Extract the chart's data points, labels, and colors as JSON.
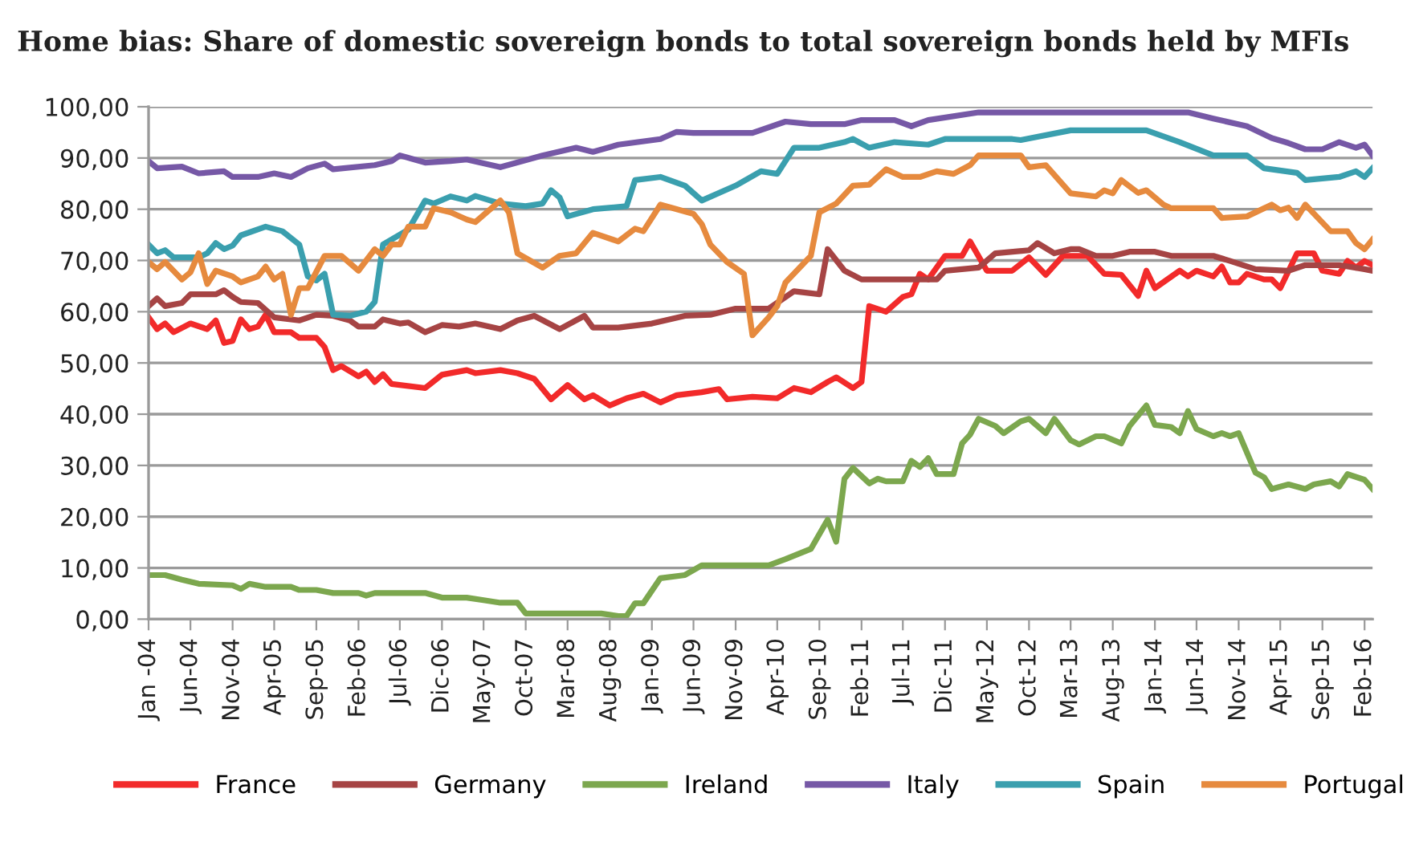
{
  "chart_data": {
    "type": "line",
    "title": "Home bias: Share of domestic sovereign bonds to total sovereign bonds held by MFIs",
    "xlim": [
      "2004-01",
      "2016-03"
    ],
    "xticks": [
      {
        "value": "2004-01",
        "label": "Jan -04"
      },
      {
        "value": "2004-06",
        "label": "Jun-04"
      },
      {
        "value": "2004-11",
        "label": "Nov-04"
      },
      {
        "value": "2005-04",
        "label": "Apr-05"
      },
      {
        "value": "2005-09",
        "label": "Sep-05"
      },
      {
        "value": "2006-02",
        "label": "Feb-06"
      },
      {
        "value": "2006-07",
        "label": "Jul-06"
      },
      {
        "value": "2006-12",
        "label": "Dic-06"
      },
      {
        "value": "2007-05",
        "label": "May-07"
      },
      {
        "value": "2007-10",
        "label": "Oct-07"
      },
      {
        "value": "2008-03",
        "label": "Mar-08"
      },
      {
        "value": "2008-08",
        "label": "Aug-08"
      },
      {
        "value": "2009-01",
        "label": "Jan-09"
      },
      {
        "value": "2009-06",
        "label": "Jun-09"
      },
      {
        "value": "2009-11",
        "label": "Nov-09"
      },
      {
        "value": "2010-04",
        "label": "Apr-10"
      },
      {
        "value": "2010-09",
        "label": "Sep-10"
      },
      {
        "value": "2011-02",
        "label": "Feb-11"
      },
      {
        "value": "2011-07",
        "label": "Jul-11"
      },
      {
        "value": "2011-12",
        "label": "Dic-11"
      },
      {
        "value": "2012-05",
        "label": "May-12"
      },
      {
        "value": "2012-10",
        "label": "Oct-12"
      },
      {
        "value": "2013-03",
        "label": "Mar-13"
      },
      {
        "value": "2013-08",
        "label": "Aug-13"
      },
      {
        "value": "2014-01",
        "label": "Jan-14"
      },
      {
        "value": "2014-06",
        "label": "Jun-14"
      },
      {
        "value": "2014-11",
        "label": "Nov-14"
      },
      {
        "value": "2015-04",
        "label": "Apr-15"
      },
      {
        "value": "2015-09",
        "label": "Sep-15"
      },
      {
        "value": "2016-02",
        "label": "Feb-16"
      }
    ],
    "ylim": [
      0,
      100
    ],
    "yticks": [
      {
        "value": 0,
        "label": "0,00"
      },
      {
        "value": 10,
        "label": "10,00"
      },
      {
        "value": 20,
        "label": "20,00"
      },
      {
        "value": 30,
        "label": "30,00"
      },
      {
        "value": 40,
        "label": "40,00"
      },
      {
        "value": 50,
        "label": "50,00"
      },
      {
        "value": 60,
        "label": "60,00"
      },
      {
        "value": 70,
        "label": "70,00"
      },
      {
        "value": 80,
        "label": "80,00"
      },
      {
        "value": 90,
        "label": "90,00"
      },
      {
        "value": 100,
        "label": "100,00"
      }
    ],
    "grid": "y",
    "legend": "bottom",
    "marker": "none",
    "line_style": "solid",
    "series": [
      {
        "name": "France",
        "color": "#f22a2a",
        "x": [
          "2004-01",
          "2004-02",
          "2004-03",
          "2004-04",
          "2004-06",
          "2004-08",
          "2004-09",
          "2004-10",
          "2004-11",
          "2004-12",
          "2005-01",
          "2005-02",
          "2005-03",
          "2005-04",
          "2005-06",
          "2005-07",
          "2005-09",
          "2005-10",
          "2005-11",
          "2005-12",
          "2006-02",
          "2006-03",
          "2006-04",
          "2006-05",
          "2006-06",
          "2006-10",
          "2006-12",
          "2007-03",
          "2007-04",
          "2007-07",
          "2007-09",
          "2007-11",
          "2008-01",
          "2008-03",
          "2008-05",
          "2008-06",
          "2008-08",
          "2008-10",
          "2008-12",
          "2009-02",
          "2009-04",
          "2009-07",
          "2009-09",
          "2009-10",
          "2010-01",
          "2010-04",
          "2010-06",
          "2010-08",
          "2010-10",
          "2010-11",
          "2011-01",
          "2011-02",
          "2011-03",
          "2011-05",
          "2011-07",
          "2011-08",
          "2011-09",
          "2011-10",
          "2011-12",
          "2012-02",
          "2012-03",
          "2012-05",
          "2012-08",
          "2012-10",
          "2012-12",
          "2013-02",
          "2013-05",
          "2013-07",
          "2013-09",
          "2013-11",
          "2013-12",
          "2014-01",
          "2014-04",
          "2014-05",
          "2014-06",
          "2014-08",
          "2014-09",
          "2014-10",
          "2014-11",
          "2014-12",
          "2015-02",
          "2015-03",
          "2015-04",
          "2015-06",
          "2015-08",
          "2015-09",
          "2015-11",
          "2015-12",
          "2016-01",
          "2016-02",
          "2016-03"
        ],
        "values": [
          58.9,
          56.6,
          57.7,
          56,
          57.7,
          56.6,
          58.3,
          53.9,
          54.3,
          58.5,
          56.6,
          57.1,
          59.4,
          56,
          56,
          54.9,
          54.9,
          53.1,
          48.6,
          49.4,
          47.4,
          48.3,
          46.3,
          47.8,
          45.9,
          45.1,
          47.7,
          48.6,
          48,
          48.6,
          48,
          46.9,
          42.9,
          45.7,
          42.9,
          43.7,
          41.7,
          43.1,
          44,
          42.3,
          43.7,
          44.3,
          44.9,
          42.9,
          43.4,
          43.1,
          45.1,
          44.3,
          46.3,
          47.2,
          45.1,
          46.3,
          61.1,
          60,
          62.9,
          63.4,
          67.4,
          66.3,
          70.9,
          70.9,
          73.7,
          68,
          68,
          70.6,
          67.2,
          70.9,
          70.9,
          67.4,
          67.2,
          63.1,
          68,
          64.6,
          68,
          66.9,
          68,
          66.9,
          68.8,
          65.7,
          65.7,
          67.4,
          66.3,
          66.3,
          64.6,
          71.4,
          71.4,
          68,
          67.4,
          69.9,
          68.6,
          69.9,
          69.1
        ]
      },
      {
        "name": "Germany",
        "color": "#a64444",
        "x": [
          "2004-01",
          "2004-02",
          "2004-03",
          "2004-05",
          "2004-06",
          "2004-09",
          "2004-10",
          "2004-11",
          "2004-12",
          "2005-02",
          "2005-04",
          "2005-07",
          "2005-09",
          "2005-11",
          "2006-01",
          "2006-02",
          "2006-04",
          "2006-05",
          "2006-07",
          "2006-08",
          "2006-10",
          "2006-12",
          "2007-02",
          "2007-04",
          "2007-07",
          "2007-09",
          "2007-11",
          "2008-02",
          "2008-05",
          "2008-06",
          "2008-09",
          "2009-01",
          "2009-05",
          "2009-08",
          "2009-11",
          "2010-03",
          "2010-06",
          "2010-09",
          "2010-10",
          "2010-12",
          "2011-02",
          "2011-11",
          "2011-12",
          "2012-04",
          "2012-06",
          "2012-10",
          "2012-11",
          "2013-01",
          "2013-03",
          "2013-04",
          "2013-06",
          "2013-08",
          "2013-10",
          "2014-01",
          "2014-03",
          "2014-08",
          "2014-10",
          "2015-01",
          "2015-05",
          "2015-07",
          "2015-11",
          "2016-02",
          "2016-03"
        ],
        "values": [
          61.1,
          62.6,
          61.1,
          61.7,
          63.4,
          63.4,
          64.2,
          62.9,
          61.9,
          61.7,
          58.9,
          58.3,
          59.4,
          59.2,
          58.3,
          57.1,
          57.1,
          58.5,
          57.7,
          57.9,
          56,
          57.4,
          57.1,
          57.7,
          56.6,
          58.3,
          59.2,
          56.6,
          59.2,
          56.9,
          56.9,
          57.7,
          59.2,
          59.4,
          60.6,
          60.6,
          64,
          63.4,
          72.2,
          68,
          66.3,
          66.3,
          68,
          68.6,
          71.4,
          72,
          73.4,
          71.4,
          72.2,
          72.2,
          70.9,
          70.9,
          71.7,
          71.7,
          70.9,
          70.9,
          69.9,
          68.3,
          68,
          69.1,
          69.1,
          68.3,
          68
        ]
      },
      {
        "name": "Ireland",
        "color": "#7ca74e",
        "x": [
          "2004-01",
          "2004-03",
          "2004-05",
          "2004-07",
          "2004-11",
          "2004-12",
          "2005-01",
          "2005-03",
          "2005-06",
          "2005-07",
          "2005-09",
          "2005-11",
          "2006-02",
          "2006-03",
          "2006-04",
          "2006-10",
          "2006-12",
          "2007-03",
          "2007-05",
          "2007-07",
          "2007-09",
          "2007-10",
          "2008-07",
          "2008-09",
          "2008-10",
          "2008-11",
          "2008-12",
          "2009-02",
          "2009-05",
          "2009-07",
          "2010-03",
          "2010-05",
          "2010-08",
          "2010-10",
          "2010-11",
          "2010-12",
          "2011-01",
          "2011-03",
          "2011-04",
          "2011-05",
          "2011-07",
          "2011-08",
          "2011-09",
          "2011-10",
          "2011-11",
          "2012-01",
          "2012-02",
          "2012-03",
          "2012-04",
          "2012-06",
          "2012-07",
          "2012-09",
          "2012-10",
          "2012-12",
          "2013-01",
          "2013-03",
          "2013-04",
          "2013-06",
          "2013-07",
          "2013-09",
          "2013-10",
          "2013-12",
          "2014-01",
          "2014-03",
          "2014-04",
          "2014-05",
          "2014-06",
          "2014-08",
          "2014-09",
          "2014-10",
          "2014-11",
          "2015-01",
          "2015-02",
          "2015-03",
          "2015-05",
          "2015-07",
          "2015-08",
          "2015-10",
          "2015-11",
          "2015-12",
          "2016-02",
          "2016-03"
        ],
        "values": [
          8.6,
          8.6,
          7.7,
          6.9,
          6.6,
          5.9,
          6.9,
          6.3,
          6.3,
          5.7,
          5.7,
          5.1,
          5.1,
          4.6,
          5.1,
          5.1,
          4.2,
          4.2,
          3.7,
          3.2,
          3.2,
          1.1,
          1.1,
          0.6,
          0.6,
          3.1,
          3.1,
          8,
          8.6,
          10.5,
          10.5,
          11.7,
          13.7,
          19.4,
          15.1,
          27.4,
          29.5,
          26.5,
          27.4,
          26.9,
          26.9,
          30.9,
          29.7,
          31.4,
          28.3,
          28.3,
          34.3,
          36,
          39.1,
          37.7,
          36.3,
          38.6,
          39.1,
          36.3,
          39.1,
          34.9,
          34.1,
          35.7,
          35.7,
          34.3,
          37.7,
          41.7,
          37.9,
          37.5,
          36.3,
          40.6,
          37.1,
          35.7,
          36.3,
          35.7,
          36.3,
          28.6,
          27.7,
          25.4,
          26.3,
          25.4,
          26.3,
          26.9,
          25.9,
          28.3,
          27.2,
          25.4
        ]
      },
      {
        "name": "Italy",
        "color": "#7658a6",
        "x": [
          "2004-01",
          "2004-02",
          "2004-05",
          "2004-07",
          "2004-10",
          "2004-11",
          "2005-02",
          "2005-04",
          "2005-06",
          "2005-08",
          "2005-10",
          "2005-11",
          "2006-04",
          "2006-06",
          "2006-07",
          "2006-10",
          "2007-01",
          "2007-03",
          "2007-07",
          "2007-12",
          "2008-04",
          "2008-06",
          "2008-09",
          "2009-02",
          "2009-04",
          "2009-06",
          "2010-01",
          "2010-05",
          "2010-08",
          "2010-12",
          "2011-02",
          "2011-06",
          "2011-08",
          "2011-10",
          "2012-04",
          "2014-05",
          "2014-08",
          "2014-12",
          "2015-03",
          "2015-05",
          "2015-07",
          "2015-09",
          "2015-11",
          "2016-01",
          "2016-02",
          "2016-03"
        ],
        "values": [
          89.4,
          88,
          88.3,
          87,
          87.4,
          86.3,
          86.3,
          87,
          86.3,
          88,
          88.9,
          87.8,
          88.6,
          89.4,
          90.5,
          89.1,
          89.4,
          89.7,
          88.2,
          90.5,
          92,
          91.2,
          92.6,
          93.7,
          95.1,
          94.9,
          94.9,
          97.1,
          96.6,
          96.6,
          97.4,
          97.4,
          96.2,
          97.4,
          98.9,
          98.9,
          97.7,
          96.2,
          93.9,
          92.9,
          91.7,
          91.7,
          93.1,
          92,
          92.6,
          90.5
        ]
      },
      {
        "name": "Spain",
        "color": "#3a9fae",
        "x": [
          "2004-01",
          "2004-02",
          "2004-03",
          "2004-04",
          "2004-07",
          "2004-08",
          "2004-09",
          "2004-10",
          "2004-11",
          "2004-12",
          "2005-03",
          "2005-05",
          "2005-07",
          "2005-08",
          "2005-09",
          "2005-10",
          "2005-11",
          "2006-01",
          "2006-03",
          "2006-04",
          "2006-05",
          "2006-08",
          "2006-10",
          "2006-11",
          "2007-01",
          "2007-03",
          "2007-04",
          "2007-07",
          "2007-10",
          "2007-12",
          "2008-01",
          "2008-02",
          "2008-03",
          "2008-06",
          "2008-10",
          "2008-11",
          "2009-02",
          "2009-05",
          "2009-07",
          "2009-11",
          "2010-02",
          "2010-04",
          "2010-06",
          "2010-09",
          "2010-12",
          "2011-01",
          "2011-03",
          "2011-06",
          "2011-10",
          "2011-12",
          "2012-08",
          "2012-09",
          "2013-03",
          "2013-09",
          "2013-12",
          "2014-04",
          "2014-08",
          "2014-12",
          "2015-02",
          "2015-06",
          "2015-07",
          "2015-11",
          "2016-01",
          "2016-02",
          "2016-03"
        ],
        "values": [
          73.1,
          71.4,
          72,
          70.6,
          70.6,
          71.4,
          73.4,
          72.2,
          72.9,
          74.9,
          76.6,
          75.7,
          73.1,
          66.9,
          66.1,
          67.4,
          59.4,
          59.2,
          60,
          61.9,
          73.1,
          76,
          81.7,
          81.1,
          82.5,
          81.7,
          82.6,
          81.1,
          80.6,
          81.1,
          83.7,
          82.3,
          78.6,
          80,
          80.6,
          85.7,
          86.3,
          84.6,
          81.7,
          84.6,
          87.4,
          86.9,
          92,
          92,
          93.1,
          93.7,
          92,
          93.1,
          92.6,
          93.7,
          93.7,
          93.5,
          95.4,
          95.4,
          95.4,
          93.1,
          90.5,
          90.5,
          88,
          87.1,
          85.7,
          86.3,
          87.4,
          86.3,
          88
        ]
      },
      {
        "name": "Portugal",
        "color": "#e68a3e",
        "x": [
          "2004-01",
          "2004-02",
          "2004-03",
          "2004-05",
          "2004-06",
          "2004-07",
          "2004-08",
          "2004-09",
          "2004-11",
          "2004-12",
          "2005-02",
          "2005-03",
          "2005-04",
          "2005-05",
          "2005-06",
          "2005-07",
          "2005-08",
          "2005-10",
          "2005-12",
          "2006-02",
          "2006-04",
          "2006-05",
          "2006-06",
          "2006-07",
          "2006-08",
          "2006-10",
          "2006-11",
          "2007-01",
          "2007-03",
          "2007-04",
          "2007-07",
          "2007-08",
          "2007-09",
          "2007-12",
          "2008-02",
          "2008-04",
          "2008-06",
          "2008-09",
          "2008-11",
          "2008-12",
          "2009-02",
          "2009-06",
          "2009-07",
          "2009-08",
          "2009-10",
          "2009-12",
          "2010-01",
          "2010-03",
          "2010-04",
          "2010-05",
          "2010-08",
          "2010-09",
          "2010-11",
          "2011-01",
          "2011-03",
          "2011-05",
          "2011-07",
          "2011-09",
          "2011-11",
          "2012-01",
          "2012-03",
          "2012-04",
          "2012-09",
          "2012-10",
          "2012-12",
          "2013-03",
          "2013-06",
          "2013-07",
          "2013-08",
          "2013-09",
          "2013-11",
          "2013-12",
          "2014-02",
          "2014-03",
          "2014-08",
          "2014-09",
          "2014-12",
          "2015-03",
          "2015-04",
          "2015-05",
          "2015-06",
          "2015-07",
          "2015-10",
          "2015-12",
          "2016-01",
          "2016-02",
          "2016-03"
        ],
        "values": [
          69.7,
          68.3,
          69.7,
          66.3,
          67.7,
          71.4,
          65.4,
          68,
          66.9,
          65.7,
          66.9,
          68.8,
          66.3,
          67.4,
          59.4,
          64.6,
          64.6,
          70.9,
          70.9,
          68,
          72.2,
          70.9,
          73.1,
          73.1,
          76.6,
          76.6,
          80.2,
          79.4,
          78,
          77.5,
          81.7,
          79.4,
          71.4,
          68.6,
          70.9,
          71.4,
          75.4,
          73.7,
          76.2,
          75.7,
          80.9,
          79.1,
          77.1,
          73.1,
          69.7,
          67.4,
          55.4,
          58.9,
          61.1,
          65.7,
          70.9,
          79.4,
          81.1,
          84.6,
          84.8,
          87.8,
          86.3,
          86.3,
          87.4,
          86.9,
          88.6,
          90.5,
          90.5,
          88.2,
          88.6,
          83.1,
          82.5,
          83.7,
          83.1,
          85.7,
          83.2,
          83.7,
          80.9,
          80.2,
          80.2,
          78.3,
          78.6,
          80.9,
          79.8,
          80.3,
          78.3,
          80.9,
          75.7,
          75.7,
          73.4,
          72.2,
          74.1
        ]
      }
    ]
  }
}
